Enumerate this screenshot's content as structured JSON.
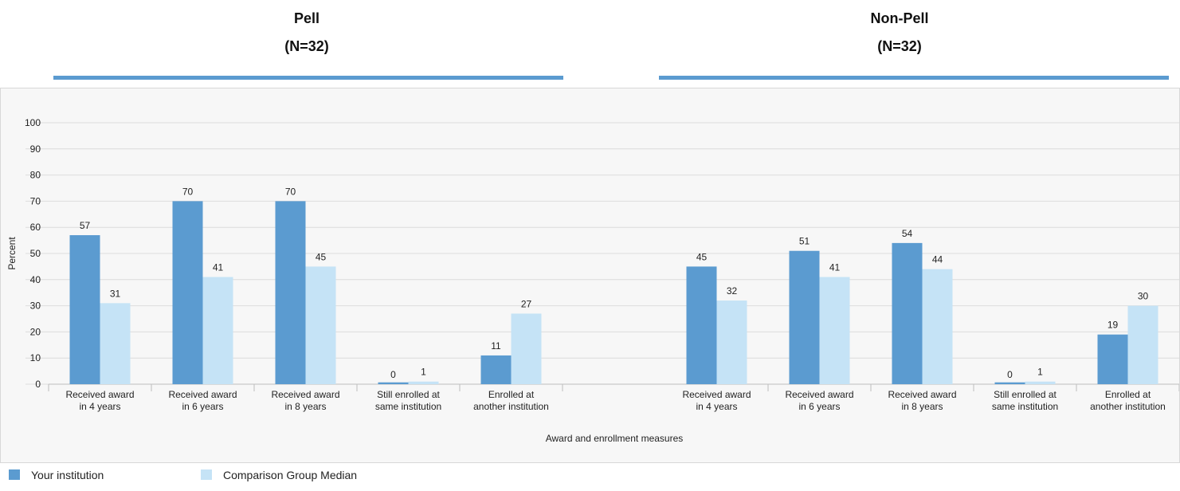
{
  "groups": [
    {
      "name": "Pell",
      "n": "(N=32)"
    },
    {
      "name": "Non-Pell",
      "n": "(N=32)"
    }
  ],
  "legend": [
    {
      "label": "Your institution",
      "color": "#5b9bd0"
    },
    {
      "label": "Comparison Group Median",
      "color": "#c5e3f6"
    }
  ],
  "chart_data": {
    "type": "bar",
    "ylabel": "Percent",
    "xlabel": "Award and enrollment measures",
    "ylim": [
      0,
      100
    ],
    "yticks": [
      0,
      10,
      20,
      30,
      40,
      50,
      60,
      70,
      80,
      90,
      100
    ],
    "grid": true,
    "categories": [
      [
        "Received award",
        "in 4 years"
      ],
      [
        "Received award",
        "in 6 years"
      ],
      [
        "Received award",
        "in 8 years"
      ],
      [
        "Still enrolled at",
        "same institution"
      ],
      [
        "Enrolled at",
        "another institution"
      ],
      [
        "",
        ""
      ],
      [
        "Received award",
        "in 4 years"
      ],
      [
        "Received award",
        "in 6 years"
      ],
      [
        "Received award",
        "in 8 years"
      ],
      [
        "Still enrolled at",
        "same institution"
      ],
      [
        "Enrolled at",
        "another institution"
      ]
    ],
    "series": [
      {
        "name": "Your institution",
        "color": "#5b9bd0",
        "values": [
          57,
          70,
          70,
          0,
          11,
          null,
          45,
          51,
          54,
          0,
          19
        ]
      },
      {
        "name": "Comparison Group Median",
        "color": "#c5e3f6",
        "values": [
          31,
          41,
          45,
          1,
          27,
          null,
          32,
          41,
          44,
          1,
          30
        ]
      }
    ],
    "legend_position": "bottom"
  }
}
